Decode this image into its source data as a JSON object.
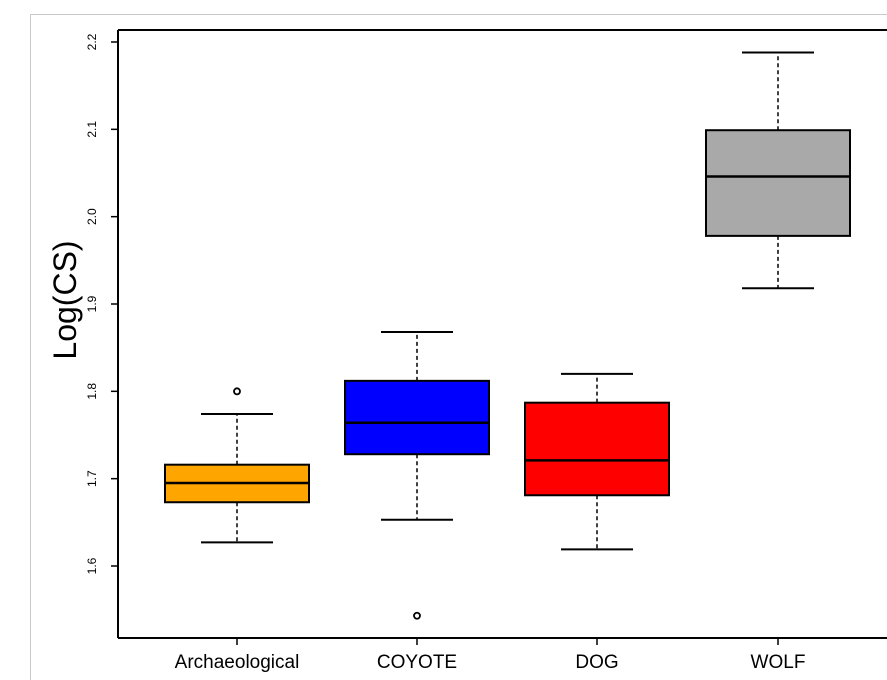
{
  "chart_data": {
    "type": "boxplot",
    "title": "",
    "xlabel": "",
    "ylabel": "Log(CS)",
    "ylim": [
      1.54,
      2.21
    ],
    "yticks": [
      "1.6",
      "1.7",
      "1.8",
      "1.9",
      "2.0",
      "2.1",
      "2.2"
    ],
    "ytick_values": [
      1.6,
      1.7,
      1.8,
      1.9,
      2.0,
      2.1,
      2.2
    ],
    "categories": [
      "Archaeological",
      "COYOTE",
      "DOG",
      "WOLF"
    ],
    "boxes": [
      {
        "category": "Archaeological",
        "whisker_low": 1.627,
        "q1": 1.673,
        "median": 1.695,
        "q3": 1.716,
        "whisker_high": 1.774,
        "outliers": [
          1.8
        ],
        "color": "#FFA500"
      },
      {
        "category": "COYOTE",
        "whisker_low": 1.653,
        "q1": 1.728,
        "median": 1.764,
        "q3": 1.812,
        "whisker_high": 1.868,
        "outliers": [
          1.543
        ],
        "color": "#0000FF"
      },
      {
        "category": "DOG",
        "whisker_low": 1.619,
        "q1": 1.681,
        "median": 1.721,
        "q3": 1.787,
        "whisker_high": 1.82,
        "outliers": [],
        "color": "#FF0000"
      },
      {
        "category": "WOLF",
        "whisker_low": 1.918,
        "q1": 1.978,
        "median": 2.046,
        "q3": 2.099,
        "whisker_high": 2.188,
        "outliers": [],
        "color": "#A9A9A9"
      }
    ],
    "grid": false,
    "legend": "none"
  }
}
